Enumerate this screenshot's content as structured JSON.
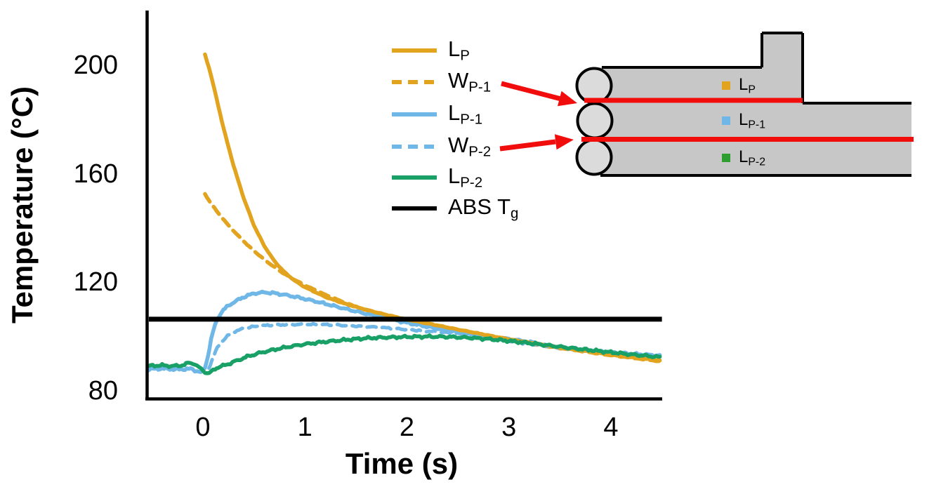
{
  "colors": {
    "orange": "#E2A41F",
    "blue": "#6FB7E6",
    "green": "#18A066",
    "inset_green_swatch": "#2E9E30",
    "black": "#000000",
    "red": "#F20D0D",
    "band_gray": "#C7C7C7",
    "bead_gray": "#DBDBDB",
    "background": "#FFFFFF"
  },
  "axes": {
    "xlabel": "Time (s)",
    "ylabel": "Temperature (°C)",
    "xticks": [
      0,
      1,
      2,
      3,
      4
    ],
    "xtick_labels": [
      "0",
      "1",
      "2",
      "3",
      "4"
    ],
    "yticks": [
      80,
      120,
      160,
      200
    ],
    "ytick_labels": [
      "80",
      "120",
      "160",
      "200"
    ],
    "xlim": [
      -0.55,
      4.5
    ],
    "ylim": [
      78,
      212
    ],
    "grid": false
  },
  "legend": {
    "position": "upper-center-left",
    "items": [
      {
        "id": "lp",
        "main": "L",
        "sub": "P",
        "color_key": "orange",
        "dash": false
      },
      {
        "id": "wp1",
        "main": "W",
        "sub": "P-1",
        "color_key": "orange",
        "dash": true
      },
      {
        "id": "lp1",
        "main": "L",
        "sub": "P-1",
        "color_key": "blue",
        "dash": false
      },
      {
        "id": "wp2",
        "main": "W",
        "sub": "P-2",
        "color_key": "blue",
        "dash": true
      },
      {
        "id": "lp2",
        "main": "L",
        "sub": "P-2",
        "color_key": "green",
        "dash": false
      },
      {
        "id": "tg",
        "main": "ABS T",
        "sub": "g",
        "color_key": "black",
        "dash": false
      }
    ]
  },
  "chart_data": {
    "type": "line",
    "xlabel": "Time (s)",
    "ylabel": "Temperature (°C)",
    "xlim": [
      -0.55,
      4.5
    ],
    "ylim": [
      78,
      212
    ],
    "ref_line": {
      "label_main": "ABS T",
      "label_sub": "g",
      "value": 106.4,
      "t_start": -0.53,
      "t_end": 4.5,
      "color_key": "black"
    },
    "series": [
      {
        "id": "wp2",
        "name": "W_P-2",
        "color_key": "blue",
        "dash": true,
        "width": 5,
        "noise": 0.35,
        "points": [
          [
            0.06,
            88.5
          ],
          [
            0.1,
            92.5
          ],
          [
            0.14,
            95.8
          ],
          [
            0.18,
            98.0
          ],
          [
            0.24,
            100.2
          ],
          [
            0.3,
            101.7
          ],
          [
            0.4,
            103.0
          ],
          [
            0.5,
            103.7
          ],
          [
            0.65,
            104.2
          ],
          [
            0.8,
            104.4
          ],
          [
            1.0,
            104.5
          ],
          [
            1.2,
            104.4
          ],
          [
            1.4,
            104.1
          ],
          [
            1.6,
            103.7
          ],
          [
            1.8,
            103.2
          ],
          [
            2.0,
            102.6
          ],
          [
            2.25,
            101.9
          ],
          [
            2.5,
            101.1
          ],
          [
            2.75,
            100.2
          ],
          [
            3.0,
            99.2
          ],
          [
            3.25,
            97.9
          ],
          [
            3.5,
            95.8
          ],
          [
            3.75,
            94.8
          ],
          [
            4.0,
            94.0
          ],
          [
            4.25,
            93.3
          ],
          [
            4.48,
            92.8
          ]
        ]
      },
      {
        "id": "wp1",
        "name": "W_P-1",
        "color_key": "orange",
        "dash": true,
        "width": 5.5,
        "noise": 0.15,
        "points": [
          [
            0.02,
            152.5
          ],
          [
            0.08,
            149.0
          ],
          [
            0.15,
            145.5
          ],
          [
            0.25,
            141.0
          ],
          [
            0.35,
            137.0
          ],
          [
            0.45,
            133.3
          ],
          [
            0.55,
            130.0
          ],
          [
            0.65,
            127.0
          ],
          [
            0.75,
            124.3
          ],
          [
            0.85,
            121.9
          ],
          [
            1.0,
            118.9
          ],
          [
            1.2,
            115.4
          ],
          [
            1.4,
            112.4
          ],
          [
            1.6,
            109.8
          ],
          [
            1.8,
            107.5
          ],
          [
            2.0,
            105.7
          ],
          [
            2.25,
            103.9
          ],
          [
            2.5,
            102.1
          ],
          [
            2.75,
            100.3
          ],
          [
            3.0,
            98.6
          ],
          [
            3.25,
            97.1
          ],
          [
            3.5,
            95.7
          ],
          [
            3.75,
            94.4
          ],
          [
            4.0,
            93.1
          ],
          [
            4.25,
            91.9
          ],
          [
            4.48,
            90.9
          ]
        ]
      },
      {
        "id": "lp1",
        "name": "L_P-1",
        "color_key": "blue",
        "dash": false,
        "width": 5.5,
        "noise": 0.5,
        "points": [
          [
            -0.53,
            88.0
          ],
          [
            -0.4,
            88.2
          ],
          [
            -0.25,
            87.9
          ],
          [
            -0.12,
            88.1
          ],
          [
            -0.06,
            87.3
          ],
          [
            -0.02,
            86.8
          ],
          [
            0.02,
            88.5
          ],
          [
            0.05,
            93.0
          ],
          [
            0.08,
            99.0
          ],
          [
            0.12,
            104.5
          ],
          [
            0.16,
            107.8
          ],
          [
            0.2,
            109.8
          ],
          [
            0.25,
            111.4
          ],
          [
            0.3,
            112.6
          ],
          [
            0.4,
            114.6
          ],
          [
            0.5,
            115.9
          ],
          [
            0.6,
            116.3
          ],
          [
            0.7,
            116.0
          ],
          [
            0.8,
            115.4
          ],
          [
            0.9,
            114.7
          ],
          [
            1.0,
            113.9
          ],
          [
            1.2,
            112.1
          ],
          [
            1.4,
            110.2
          ],
          [
            1.6,
            108.4
          ],
          [
            1.8,
            106.7
          ],
          [
            2.0,
            105.1
          ],
          [
            2.25,
            103.3
          ],
          [
            2.5,
            101.6
          ],
          [
            2.75,
            100.0
          ],
          [
            3.0,
            98.5
          ],
          [
            3.25,
            97.2
          ],
          [
            3.5,
            96.0
          ],
          [
            3.75,
            95.0
          ],
          [
            4.0,
            94.2
          ],
          [
            4.25,
            93.5
          ],
          [
            4.48,
            93.0
          ]
        ]
      },
      {
        "id": "lp",
        "name": "L_P",
        "color_key": "orange",
        "dash": false,
        "width": 5.5,
        "noise": 0.18,
        "points": [
          [
            0.02,
            204.0
          ],
          [
            0.06,
            199.0
          ],
          [
            0.12,
            190.0
          ],
          [
            0.2,
            177.0
          ],
          [
            0.3,
            163.0
          ],
          [
            0.4,
            151.0
          ],
          [
            0.5,
            141.0
          ],
          [
            0.6,
            133.5
          ],
          [
            0.7,
            127.8
          ],
          [
            0.8,
            123.7
          ],
          [
            0.9,
            120.6
          ],
          [
            1.0,
            118.2
          ],
          [
            1.2,
            114.6
          ],
          [
            1.4,
            112.0
          ],
          [
            1.6,
            109.9
          ],
          [
            1.8,
            108.0
          ],
          [
            2.0,
            106.3
          ],
          [
            2.25,
            104.5
          ],
          [
            2.5,
            102.6
          ],
          [
            2.75,
            100.8
          ],
          [
            3.0,
            99.0
          ],
          [
            3.25,
            97.5
          ],
          [
            3.5,
            96.0
          ],
          [
            3.75,
            94.7
          ],
          [
            4.0,
            93.4
          ],
          [
            4.25,
            92.2
          ],
          [
            4.48,
            91.1
          ]
        ]
      },
      {
        "id": "lp2",
        "name": "L_P-2",
        "color_key": "green",
        "dash": false,
        "width": 5.5,
        "noise": 0.55,
        "points": [
          [
            -0.53,
            89.2
          ],
          [
            -0.4,
            89.4
          ],
          [
            -0.3,
            89.1
          ],
          [
            -0.2,
            89.4
          ],
          [
            -0.13,
            90.4
          ],
          [
            -0.08,
            89.9
          ],
          [
            -0.04,
            88.6
          ],
          [
            0.0,
            87.6
          ],
          [
            0.04,
            86.4
          ],
          [
            0.08,
            86.9
          ],
          [
            0.12,
            88.2
          ],
          [
            0.16,
            88.8
          ],
          [
            0.25,
            89.9
          ],
          [
            0.35,
            91.4
          ],
          [
            0.45,
            92.8
          ],
          [
            0.55,
            93.9
          ],
          [
            0.65,
            94.8
          ],
          [
            0.75,
            95.6
          ],
          [
            0.85,
            96.3
          ],
          [
            1.0,
            97.2
          ],
          [
            1.2,
            98.1
          ],
          [
            1.4,
            98.8
          ],
          [
            1.6,
            99.4
          ],
          [
            1.8,
            99.7
          ],
          [
            2.0,
            99.9
          ],
          [
            2.2,
            100.0
          ],
          [
            2.4,
            99.9
          ],
          [
            2.6,
            99.6
          ],
          [
            2.8,
            99.1
          ],
          [
            3.0,
            98.4
          ],
          [
            3.2,
            97.6
          ],
          [
            3.4,
            96.7
          ],
          [
            3.6,
            95.8
          ],
          [
            3.8,
            95.0
          ],
          [
            4.0,
            94.2
          ],
          [
            4.2,
            93.4
          ],
          [
            4.35,
            92.9
          ],
          [
            4.48,
            92.4
          ]
        ]
      }
    ]
  },
  "inset": {
    "legend": [
      {
        "id": "lp",
        "main": "L",
        "sub": "P",
        "swatch_color_key": "orange"
      },
      {
        "id": "lp1",
        "main": "L",
        "sub": "P-1",
        "swatch_color_key": "blue"
      },
      {
        "id": "lp2",
        "main": "L",
        "sub": "P-2",
        "swatch_color_key": "inset_green_swatch"
      }
    ]
  }
}
